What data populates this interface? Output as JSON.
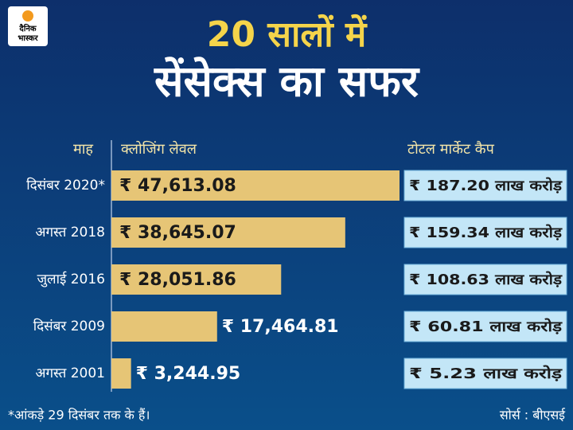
{
  "logo": [
    "दैनिक",
    "भास्कर"
  ],
  "chart_data": {
    "type": "hbar",
    "title": "20 सालों में",
    "subtitle": "सेंसेक्स का सफर",
    "headers": [
      "माह",
      "क्लोजिंग लेवल",
      "टोटल मार्केट कैप"
    ],
    "categories": [
      "दिसंबर 2020*",
      "अगस्त 2018",
      "जुलाई 2016",
      "दिसंबर 2009",
      "अगस्त 2001"
    ],
    "values": [
      47613.08,
      38645.07,
      28051.86,
      17464.81,
      3244.95
    ],
    "value_labels": [
      "₹ 47,613.08",
      "₹ 38,645.07",
      "₹ 28,051.86",
      "₹ 17,464.81",
      "₹ 3,244.95"
    ],
    "color": "#e6c576",
    "market_cap": {
      "values": [
        187.2,
        159.34,
        108.63,
        60.81,
        5.23
      ],
      "value_labels": [
        "₹ 187.20 लाख करोड़",
        "₹ 159.34 लाख करोड़",
        "₹ 108.63 लाख करोड़",
        "₹ 60.81 लाख करोड़",
        "₹ 5.23 लाख करोड़"
      ]
    },
    "footnote": "*आंकड़े 29 दिसंबर तक के हैं।",
    "source": "सोर्स : बीएसई"
  }
}
